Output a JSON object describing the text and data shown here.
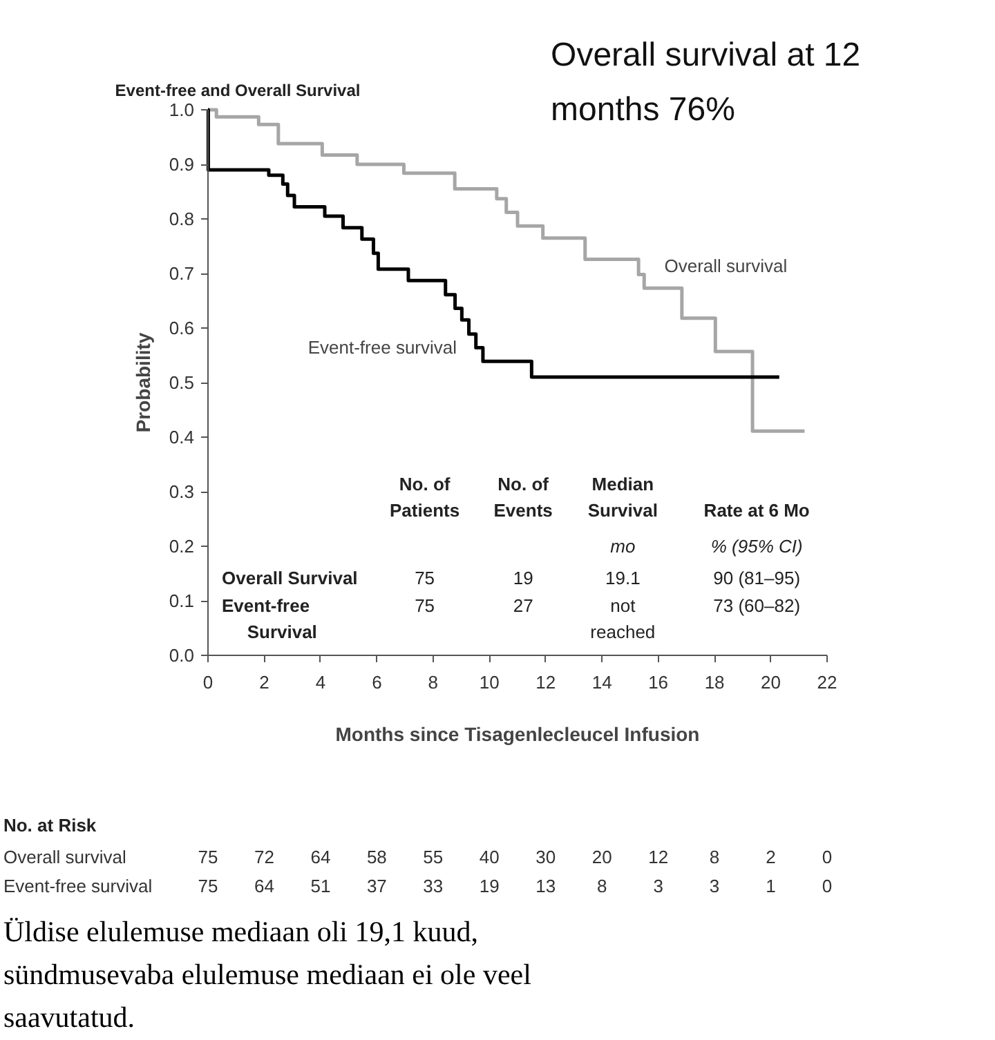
{
  "chart_data": {
    "type": "step",
    "title": "Event-free and Overall Survival",
    "xlabel": "Months since Tisagenlecleucel Infusion",
    "ylabel": "Probability",
    "xlim": [
      0,
      22
    ],
    "xticks": [
      0,
      2,
      4,
      6,
      8,
      10,
      12,
      14,
      16,
      18,
      20,
      22
    ],
    "ylim": [
      0,
      1.0
    ],
    "yticks": [
      {
        "value": 0,
        "label": "0.0"
      },
      0.1,
      0.2,
      0.3,
      0.4,
      0.5,
      0.6,
      0.7,
      0.8,
      0.9,
      {
        "value": 1,
        "label": "1.0"
      }
    ],
    "grid": false,
    "legend": false,
    "series": [
      {
        "name": "Overall survival",
        "color": "#a6a6a6",
        "x": [
          0,
          0.3,
          1.8,
          2.5,
          4.06,
          5.3,
          6.96,
          8.77,
          10.26,
          10.6,
          11.0,
          11.9,
          13.4,
          15.3,
          15.5,
          16.84,
          18.03,
          19.35,
          21.2
        ],
        "values": [
          1.0,
          0.987,
          0.973,
          0.938,
          0.917,
          0.9,
          0.884,
          0.855,
          0.837,
          0.812,
          0.787,
          0.765,
          0.726,
          0.698,
          0.673,
          0.618,
          0.557,
          0.411,
          0.411
        ]
      },
      {
        "name": "Event-free survival",
        "color": "#000000",
        "x": [
          0,
          0.01,
          2.16,
          2.66,
          2.83,
          3.07,
          4.15,
          4.8,
          5.47,
          5.88,
          6.05,
          7.12,
          8.44,
          8.78,
          9.02,
          9.27,
          9.52,
          9.77,
          11.5,
          20.3
        ],
        "values": [
          1.0,
          0.89,
          0.88,
          0.864,
          0.843,
          0.822,
          0.805,
          0.784,
          0.763,
          0.737,
          0.708,
          0.687,
          0.661,
          0.636,
          0.615,
          0.589,
          0.564,
          0.539,
          0.51,
          0.51
        ]
      }
    ],
    "annotations": [
      "Overall survival at 12 months 76%",
      "No. of Patients",
      "No. of Events",
      "Median Survival",
      "Rate at 6 Mo",
      "mo",
      "% (95% CI)",
      "Overall Survival",
      "75",
      "19",
      "19.1",
      "90 (81–95)",
      "Event-free Survival",
      "75",
      "27",
      "not reached",
      "73 (60–82)",
      "No. at Risk",
      "Overall survival",
      "75",
      "72",
      "64",
      "58",
      "55",
      "40",
      "30",
      "20",
      "12",
      "8",
      "2",
      "0",
      "Event-free survival",
      "75",
      "64",
      "51",
      "37",
      "33",
      "19",
      "13",
      "8",
      "3",
      "3",
      "1",
      "0",
      "Üldise elulemuse mediaan oli 19,1 kuud, sündmusevaba elulemuse mediaan ei ole veel saavutatud."
    ]
  }
}
